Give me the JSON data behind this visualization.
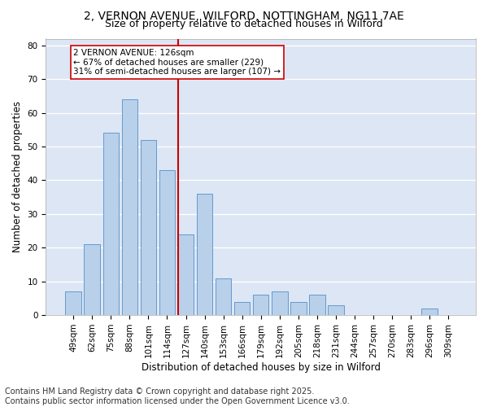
{
  "title1": "2, VERNON AVENUE, WILFORD, NOTTINGHAM, NG11 7AE",
  "title2": "Size of property relative to detached houses in Wilford",
  "xlabel": "Distribution of detached houses by size in Wilford",
  "ylabel": "Number of detached properties",
  "footnote1": "Contains HM Land Registry data © Crown copyright and database right 2025.",
  "footnote2": "Contains public sector information licensed under the Open Government Licence v3.0.",
  "annotation_line1": "2 VERNON AVENUE: 126sqm",
  "annotation_line2": "← 67% of detached houses are smaller (229)",
  "annotation_line3": "31% of semi-detached houses are larger (107) →",
  "bar_labels": [
    "49sqm",
    "62sqm",
    "75sqm",
    "88sqm",
    "101sqm",
    "114sqm",
    "127sqm",
    "140sqm",
    "153sqm",
    "166sqm",
    "179sqm",
    "192sqm",
    "205sqm",
    "218sqm",
    "231sqm",
    "244sqm",
    "257sqm",
    "270sqm",
    "283sqm",
    "296sqm",
    "309sqm"
  ],
  "bar_values": [
    7,
    21,
    54,
    64,
    52,
    43,
    24,
    36,
    11,
    4,
    6,
    7,
    4,
    6,
    3,
    0,
    0,
    0,
    0,
    2,
    0
  ],
  "bar_color": "#b8d0ea",
  "bar_edge_color": "#6699cc",
  "vline_color": "#cc0000",
  "box_color": "#cc0000",
  "ylim": [
    0,
    82
  ],
  "yticks": [
    0,
    10,
    20,
    30,
    40,
    50,
    60,
    70,
    80
  ],
  "bg_color": "#dce6f5",
  "grid_color": "#ffffff",
  "title_fontsize": 10,
  "subtitle_fontsize": 9,
  "label_fontsize": 8.5,
  "tick_fontsize": 7.5,
  "footnote_fontsize": 7,
  "annot_fontsize": 7.5
}
